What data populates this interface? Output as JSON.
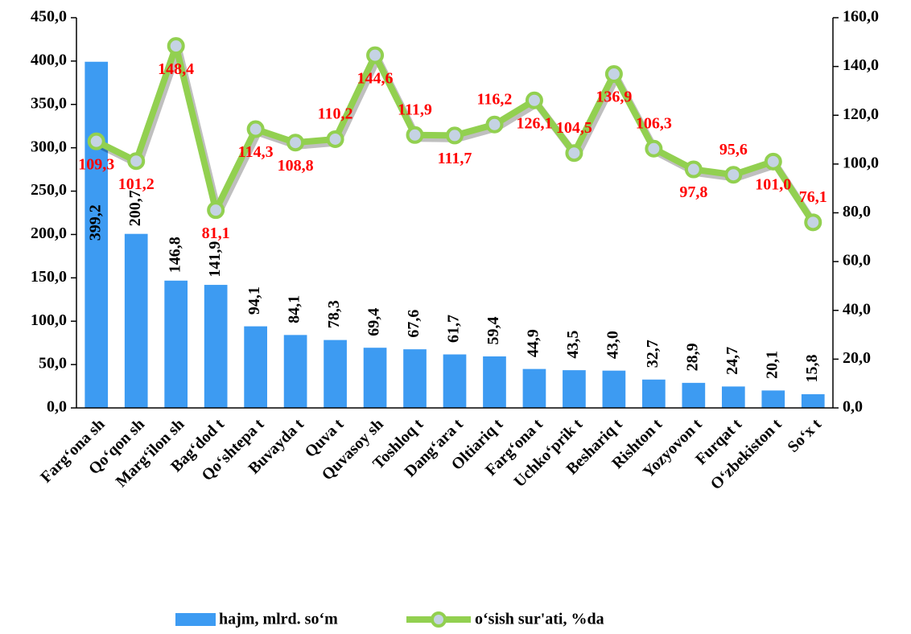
{
  "chart_data": {
    "type": "bar",
    "categories": [
      "Farg‘ona sh",
      "Qo‘qon sh",
      "Marg‘ilon sh",
      "Bag‘dod t",
      "Qo‘shtepa t",
      "Buvayda t",
      "Quva t",
      "Quvasoy sh",
      "Toshloq t",
      "Dang‘ara t",
      "Oltiariq t",
      "Farg‘ona t",
      "Uchko‘prik t",
      "Beshariq t",
      "Rishton t",
      "Yozyovon t",
      "Furqat t",
      "O‘zbekiston t",
      "So‘x t"
    ],
    "series": [
      {
        "name": "hajm, mlrd. so‘m",
        "color": "#3d9bf2",
        "values": [
          399.2,
          200.7,
          146.8,
          141.9,
          94.1,
          84.1,
          78.3,
          69.4,
          67.6,
          61.7,
          59.4,
          44.9,
          43.5,
          43.0,
          32.7,
          28.9,
          24.7,
          20.1,
          15.8
        ],
        "value_labels": [
          "399,2",
          "200,7",
          "146,8",
          "141,9",
          "94,1",
          "84,1",
          "78,3",
          "69,4",
          "67,6",
          "61,7",
          "59,4",
          "44,9",
          "43,5",
          "43,0",
          "32,7",
          "28,9",
          "24,7",
          "20,1",
          "15,8"
        ]
      },
      {
        "name": "o‘sish sur'ati, %da",
        "type": "line",
        "axis": "y2",
        "color": "#92d050",
        "marker_color": "#c5d3e4",
        "values": [
          109.3,
          101.2,
          148.4,
          81.1,
          114.3,
          108.8,
          110.2,
          144.6,
          111.9,
          111.7,
          116.2,
          126.1,
          104.5,
          136.9,
          106.3,
          97.8,
          95.6,
          101.0,
          76.1
        ],
        "value_labels": [
          "109,3",
          "101,2",
          "148,4",
          "81,1",
          "114,3",
          "108,8",
          "110,2",
          "144,6",
          "111,9",
          "111,7",
          "116,2",
          "126,1",
          "104,5",
          "136,9",
          "106,3",
          "97,8",
          "95,6",
          "101,0",
          "76,1"
        ],
        "label_color": "#ff0000"
      }
    ],
    "ylim": [
      0,
      450
    ],
    "yticks": [
      {
        "value": 0,
        "label": "0,0"
      },
      {
        "value": 50,
        "label": "50,0"
      },
      {
        "value": 100,
        "label": "100,0"
      },
      {
        "value": 150,
        "label": "150,0"
      },
      {
        "value": 200,
        "label": "200,0"
      },
      {
        "value": 250,
        "label": "250,0"
      },
      {
        "value": 300,
        "label": "300,0"
      },
      {
        "value": 350,
        "label": "350,0"
      },
      {
        "value": 400,
        "label": "400,0"
      },
      {
        "value": 450,
        "label": "450,0"
      }
    ],
    "y2lim": [
      0,
      160
    ],
    "y2ticks": [
      {
        "value": 0,
        "label": "0,0"
      },
      {
        "value": 20,
        "label": "20,0"
      },
      {
        "value": 40,
        "label": "40,0"
      },
      {
        "value": 60,
        "label": "60,0"
      },
      {
        "value": 80,
        "label": "80,0"
      },
      {
        "value": 100,
        "label": "100,0"
      },
      {
        "value": 120,
        "label": "120,0"
      },
      {
        "value": 140,
        "label": "140,0"
      },
      {
        "value": 160,
        "label": "160,0"
      }
    ],
    "legend": "bottom"
  }
}
